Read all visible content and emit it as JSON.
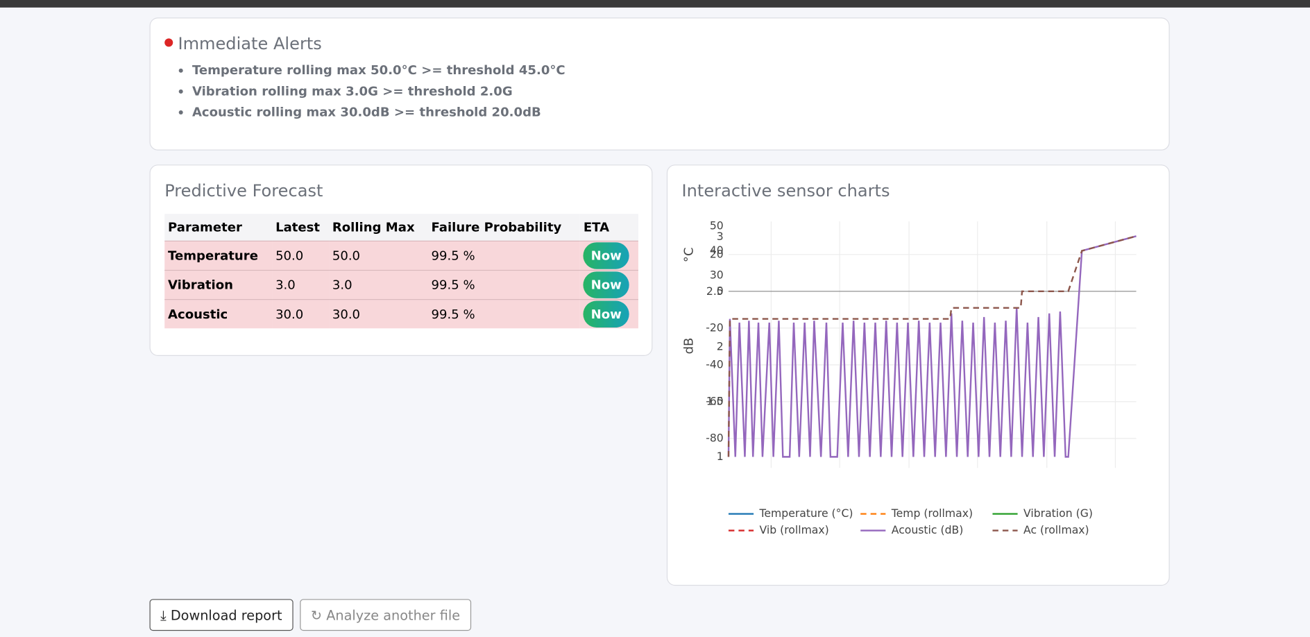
{
  "alerts": {
    "title": "Immediate Alerts",
    "items": [
      "Temperature rolling max 50.0°C >= threshold 45.0°C",
      "Vibration rolling max 3.0G >= threshold 2.0G",
      "Acoustic rolling max 30.0dB >= threshold 20.0dB"
    ]
  },
  "forecast": {
    "title": "Predictive Forecast",
    "columns": [
      "Parameter",
      "Latest",
      "Rolling Max",
      "Failure Probability",
      "ETA"
    ],
    "rows": [
      [
        "Temperature",
        "50.0",
        "50.0",
        "99.5 %",
        "Now"
      ],
      [
        "Vibration",
        "3.0",
        "3.0",
        "99.5 %",
        "Now"
      ],
      [
        "Acoustic",
        "30.0",
        "30.0",
        "99.5 %",
        "Now"
      ]
    ]
  },
  "buttons": {
    "download": "Download report",
    "analyze": "Analyze another file"
  },
  "chart_data": {
    "type": "line",
    "title": "Interactive sensor charts",
    "ylabel": "dB",
    "y2label": "°C",
    "xlim": [
      0,
      300
    ],
    "ylim": [
      -96,
      38
    ],
    "yticks": [
      -80,
      -60,
      -40,
      -20,
      0,
      20
    ],
    "y2lim": [
      -48,
      52
    ],
    "y2ticks": [
      30,
      40,
      50
    ],
    "y3lim": [
      0.9,
      3.14
    ],
    "y3ticks": [
      1,
      1.5,
      2,
      2.5,
      3
    ],
    "series": [
      {
        "name": "Temperature (°C)",
        "color": "#1f77b4",
        "dash": false
      },
      {
        "name": "Temp (rollmax)",
        "color": "#ff7f0e",
        "dash": true
      },
      {
        "name": "Vibration (G)",
        "color": "#2ca02c",
        "dash": false
      },
      {
        "name": "Vib (rollmax)",
        "color": "#d62728",
        "dash": true
      },
      {
        "name": "Acoustic (dB)",
        "color": "#9467bd",
        "dash": false,
        "x": [
          0,
          1,
          5,
          8,
          12,
          15,
          18,
          22,
          25,
          30,
          33,
          37,
          40,
          45,
          48,
          52,
          56,
          60,
          63,
          68,
          72,
          75,
          80,
          84,
          88,
          92,
          96,
          100,
          104,
          108,
          112,
          116,
          120,
          124,
          128,
          132,
          136,
          140,
          144,
          148,
          152,
          156,
          160,
          164,
          168,
          172,
          176,
          180,
          184,
          188,
          192,
          196,
          200,
          204,
          208,
          212,
          216,
          220,
          224,
          228,
          232,
          236,
          240,
          244,
          248,
          250,
          260,
          300
        ],
        "values": [
          -90,
          -15,
          -90,
          -17,
          -90,
          -16,
          -90,
          -17,
          -90,
          -17,
          -90,
          -16,
          -90,
          -90,
          -17,
          -90,
          -17,
          -90,
          -16,
          -90,
          -17,
          -90,
          -90,
          -17,
          -90,
          -16,
          -90,
          -17,
          -90,
          -17,
          -90,
          -16,
          -90,
          -17,
          -90,
          -17,
          -90,
          -16,
          -90,
          -17,
          -90,
          -17,
          -90,
          -12,
          -90,
          -16,
          -90,
          -17,
          -90,
          -14,
          -90,
          -17,
          -90,
          -16,
          -90,
          -9,
          -90,
          -17,
          -90,
          -14,
          -90,
          -12,
          -90,
          -11,
          -90,
          -90,
          22,
          30
        ]
      },
      {
        "name": "Ac (rollmax)",
        "color": "#8c564b",
        "dash": true,
        "x": [
          0,
          1,
          163,
          164,
          215,
          216,
          250,
          260,
          300
        ],
        "values": [
          -90,
          -15,
          -15,
          -9,
          -9,
          0,
          0,
          22,
          30
        ]
      }
    ]
  }
}
